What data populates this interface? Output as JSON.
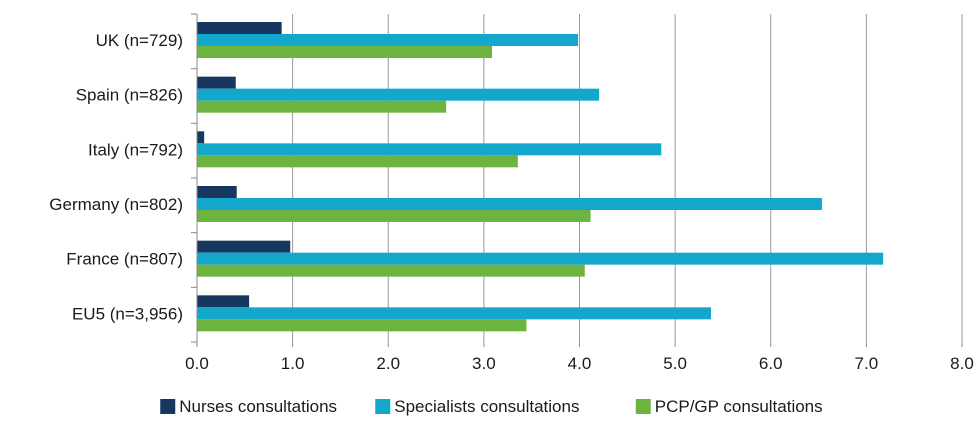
{
  "chart_data": {
    "type": "bar",
    "orientation": "horizontal",
    "categories": [
      "UK (n=729)",
      "Spain (n=826)",
      "Italy (n=792)",
      "Germany (n=802)",
      "France (n=807)",
      "EU5 (n=3,956)"
    ],
    "series": [
      {
        "name": "Nurses consultations",
        "color": "#16375f",
        "values": [
          0.88,
          0.4,
          0.07,
          0.41,
          0.97,
          0.54
        ]
      },
      {
        "name": "Specialists consultations",
        "color": "#13a7cc",
        "values": [
          3.98,
          4.2,
          4.85,
          6.53,
          7.17,
          5.37
        ]
      },
      {
        "name": "PCP/GP consultations",
        "color": "#6cb33f",
        "values": [
          3.08,
          2.6,
          3.35,
          4.11,
          4.05,
          3.44
        ]
      }
    ],
    "xlim": [
      0,
      8
    ],
    "xticks": [
      "0.0",
      "1.0",
      "2.0",
      "3.0",
      "4.0",
      "5.0",
      "6.0",
      "7.0",
      "8.0"
    ],
    "grid": true,
    "legend_position": "bottom",
    "title": "",
    "xlabel": "",
    "ylabel": ""
  }
}
